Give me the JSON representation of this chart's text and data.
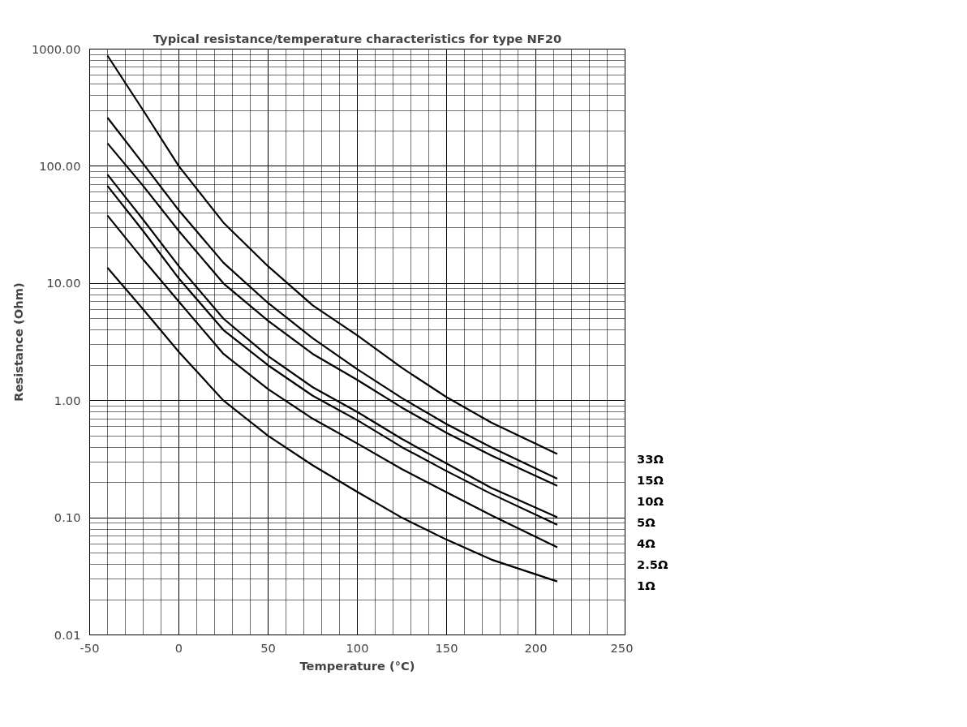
{
  "chart_data": {
    "type": "line",
    "title": "Typical resistance/temperature characteristics for type NF20",
    "xlabel": "Temperature (°C)",
    "ylabel": "Resistance (Ohm)",
    "x": [
      -40,
      -20,
      0,
      25,
      50,
      75,
      100,
      125,
      150,
      175,
      212
    ],
    "series": [
      {
        "name": "33Ω",
        "color": "#000000",
        "values": [
          880,
          300,
          100,
          33,
          14,
          6.5,
          3.6,
          1.9,
          1.07,
          0.65,
          0.35
        ]
      },
      {
        "name": "15Ω",
        "color": "#000000",
        "values": [
          260,
          105,
          42,
          15,
          6.8,
          3.4,
          1.85,
          1.05,
          0.63,
          0.4,
          0.215
        ]
      },
      {
        "name": "10Ω",
        "color": "#000000",
        "values": [
          157,
          68,
          28,
          10,
          4.8,
          2.5,
          1.5,
          0.87,
          0.53,
          0.34,
          0.187
        ]
      },
      {
        "name": "5Ω",
        "color": "#000000",
        "values": [
          85,
          35,
          14,
          5,
          2.4,
          1.3,
          0.8,
          0.47,
          0.29,
          0.18,
          0.101
        ]
      },
      {
        "name": "4Ω",
        "color": "#000000",
        "values": [
          68,
          28,
          11,
          4,
          2.0,
          1.1,
          0.68,
          0.4,
          0.25,
          0.16,
          0.087
        ]
      },
      {
        "name": "2.5Ω",
        "color": "#000000",
        "values": [
          38,
          16,
          7,
          2.5,
          1.25,
          0.7,
          0.43,
          0.26,
          0.165,
          0.105,
          0.056
        ]
      },
      {
        "name": "1Ω",
        "color": "#000000",
        "values": [
          13.6,
          6,
          2.6,
          1,
          0.5,
          0.28,
          0.166,
          0.1,
          0.065,
          0.044,
          0.0286
        ]
      }
    ],
    "xlim": [
      -50,
      250
    ],
    "xticks": [
      -50,
      0,
      50,
      100,
      150,
      200,
      250
    ],
    "ylim": [
      0.01,
      1000
    ],
    "yticks": [
      {
        "value": 0.01,
        "label": "0.01"
      },
      {
        "value": 0.1,
        "label": "0.10"
      },
      {
        "value": 1,
        "label": "1.00"
      },
      {
        "value": 10,
        "label": "10.00"
      },
      {
        "value": 100,
        "label": "100.00"
      },
      {
        "value": 1000,
        "label": "1000.00"
      }
    ],
    "log": "y",
    "grid": true,
    "line_style": "solid",
    "marker": "none"
  }
}
